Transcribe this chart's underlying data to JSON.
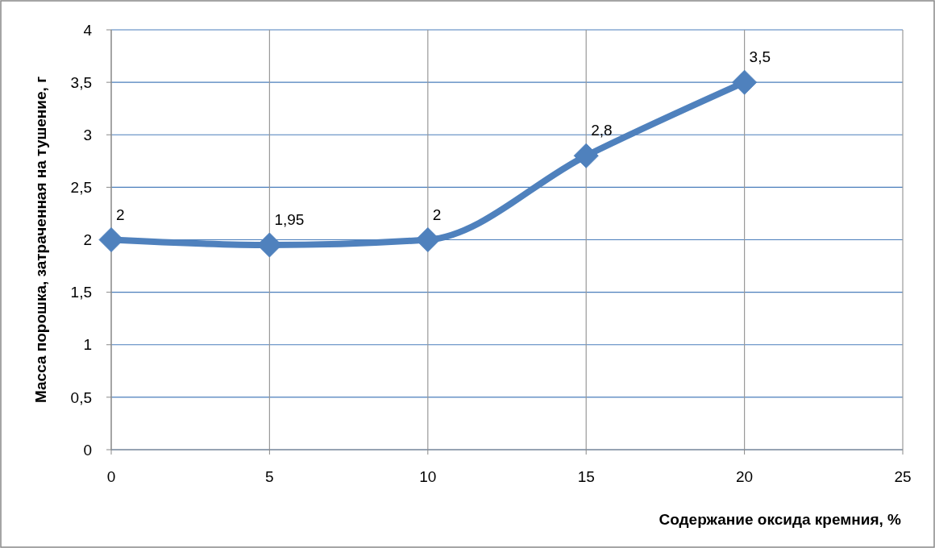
{
  "chart_data": {
    "type": "line",
    "xlabel": "Содержание оксида кремния, %",
    "ylabel": "Масса порошка, затраченная на тушение, г",
    "x": [
      0,
      5,
      10,
      15,
      20
    ],
    "series": [
      {
        "color": "#4f81bd",
        "values": [
          2,
          1.95,
          2,
          2.8,
          3.5
        ],
        "value_labels": [
          "2",
          "1,95",
          "2",
          "2,8",
          "3,5"
        ]
      }
    ],
    "xlim": [
      0,
      25
    ],
    "xticks": [
      0,
      5,
      10,
      15,
      20,
      25
    ],
    "ylim": [
      0,
      4
    ],
    "yticks": [
      0,
      {
        "value": 0.5,
        "label": "0,5"
      },
      1,
      {
        "value": 1.5,
        "label": "1,5"
      },
      2,
      {
        "value": 2.5,
        "label": "2,5"
      },
      3,
      {
        "value": 3.5,
        "label": "3,5"
      },
      4
    ],
    "grid": true,
    "marker": "diamond",
    "line_style": "solid"
  }
}
